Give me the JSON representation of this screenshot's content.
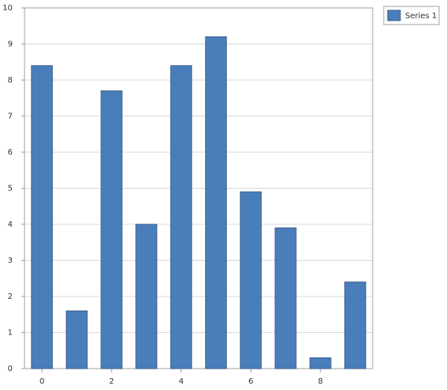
{
  "chart_data": {
    "type": "bar",
    "x": [
      0,
      1,
      2,
      3,
      4,
      5,
      6,
      7,
      8,
      9
    ],
    "series": [
      {
        "name": "Series 1",
        "color": "#4a7ebb",
        "values": [
          8.4,
          1.6,
          7.7,
          4,
          8.4,
          9.2,
          4.9,
          3.9,
          0.3,
          2.4
        ]
      }
    ],
    "xlim": [
      -0.5,
      9.5
    ],
    "xticks": [
      0,
      2,
      4,
      6,
      8
    ],
    "ylim": [
      0,
      10
    ],
    "yticks": [
      0,
      1,
      2,
      3,
      4,
      5,
      6,
      7,
      8,
      9,
      10
    ],
    "grid": true,
    "legend": "top-right"
  }
}
